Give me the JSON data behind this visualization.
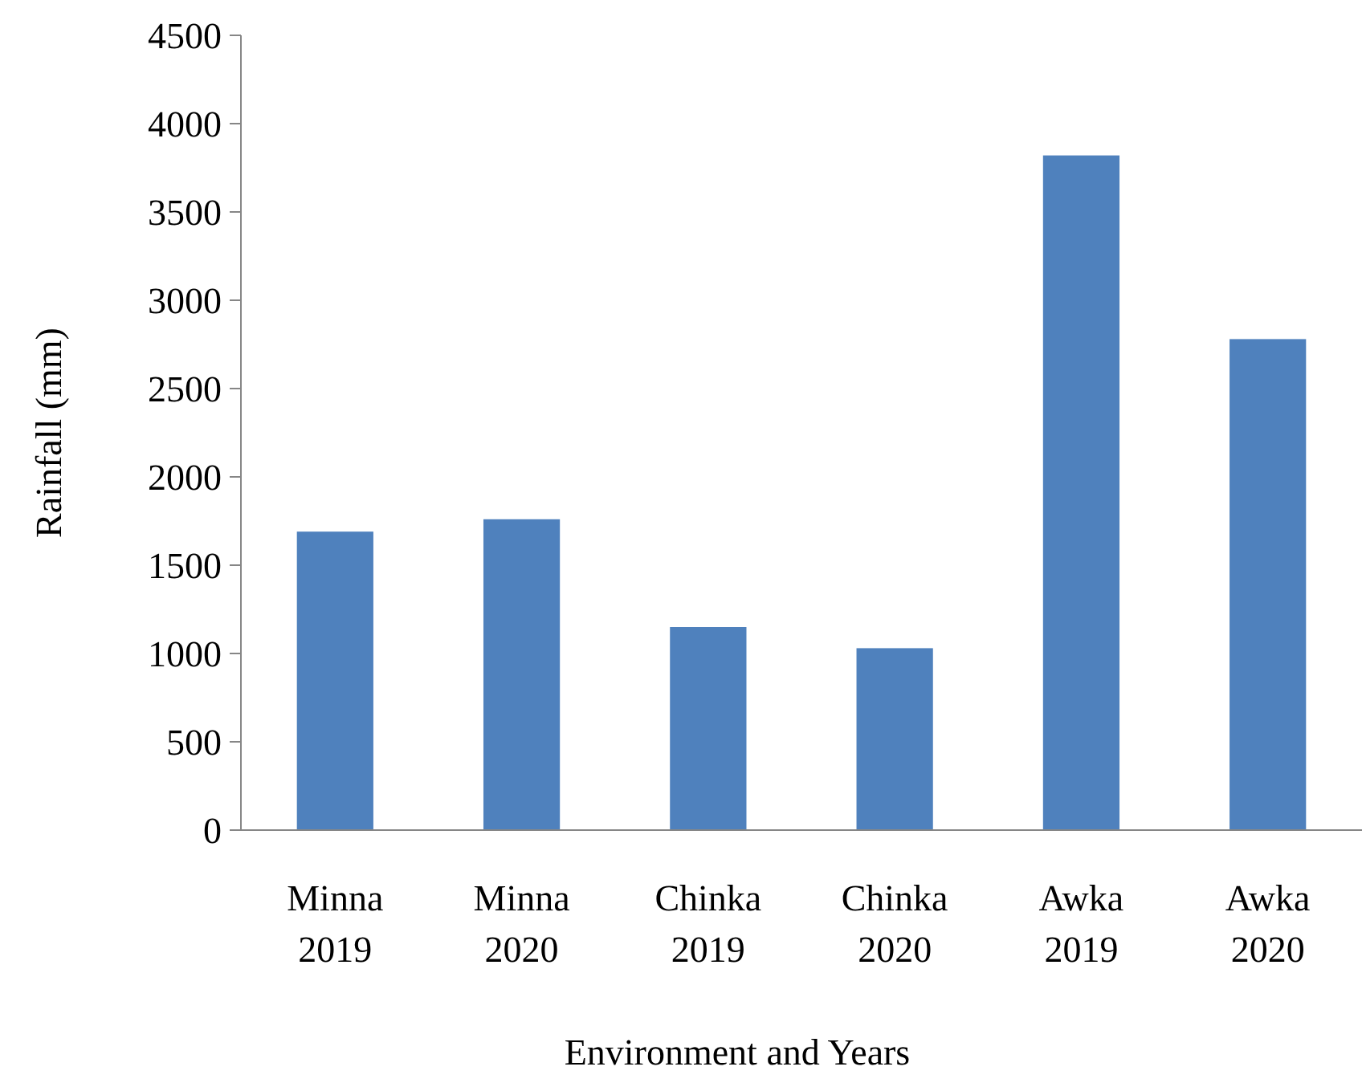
{
  "chart_data": {
    "type": "bar",
    "xlabel": "Environment and Years",
    "ylabel": "Rainfall (mm)",
    "categories": [
      "Minna 2019",
      "Minna 2020",
      "Chinka 2019",
      "Chinka 2020",
      "Awka 2019",
      "Awka 2020"
    ],
    "values": [
      1690,
      1760,
      1150,
      1030,
      3820,
      2780
    ],
    "color": "#4f81bd",
    "ylim": [
      0,
      4500
    ],
    "yticks": [
      0,
      500,
      1000,
      1500,
      2000,
      2500,
      3000,
      3500,
      4000,
      4500
    ],
    "grid": false
  }
}
